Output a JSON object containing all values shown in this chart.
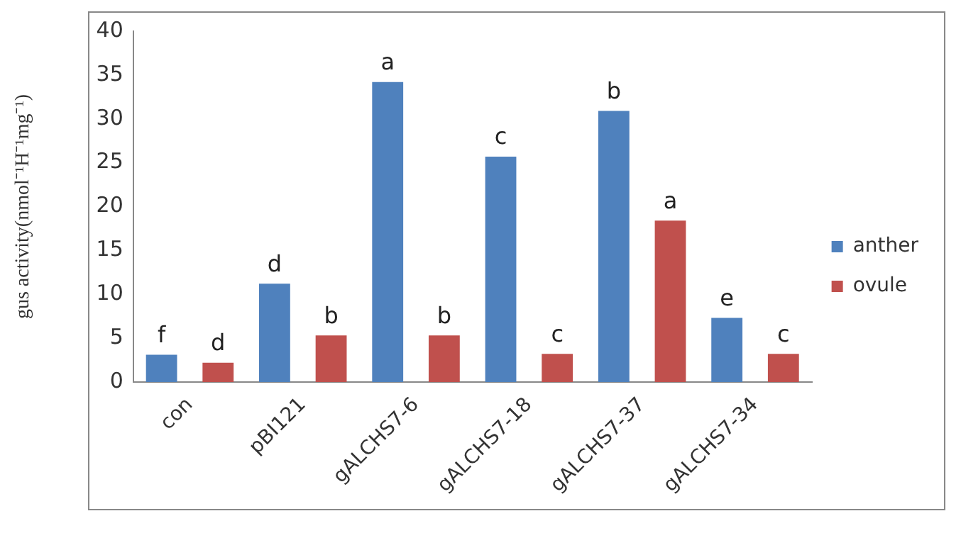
{
  "chart_data": {
    "type": "bar",
    "ylabel": "gus activity(nmol⁻¹H⁻¹mg⁻¹)",
    "categories": [
      "con",
      "pBI121",
      "gALCHS7-6",
      "gALCHS7-18",
      "gALCHS7-37",
      "gALCHS7-34"
    ],
    "series": [
      {
        "name": "anther",
        "color": "#4f81bd",
        "values": [
          3.1,
          11.2,
          34.2,
          25.7,
          30.9,
          7.3
        ],
        "value_labels": [
          "f",
          "d",
          "a",
          "c",
          "b",
          "e"
        ]
      },
      {
        "name": "ovule",
        "color": "#c0504d",
        "values": [
          2.2,
          5.3,
          5.3,
          3.2,
          18.4,
          3.2
        ],
        "value_labels": [
          "d",
          "b",
          "b",
          "c",
          "a",
          "c"
        ]
      }
    ],
    "ylim": [
      0,
      40
    ],
    "yticks": [
      0,
      5,
      10,
      15,
      20,
      25,
      30,
      35,
      40
    ],
    "grid": false,
    "legend": "right"
  }
}
